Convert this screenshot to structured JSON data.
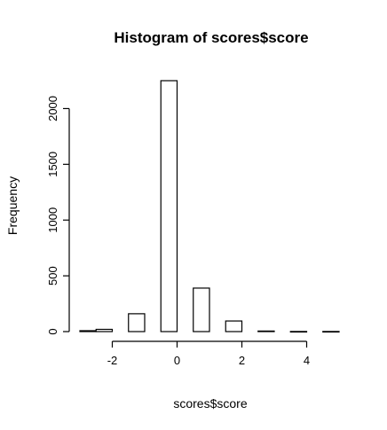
{
  "chart_data": {
    "type": "bar",
    "title": "Histogram of scores$score",
    "xlabel": "scores$score",
    "ylabel": "Frequency",
    "xlim": [
      -3,
      5
    ],
    "ylim": [
      0,
      2250
    ],
    "bins": [
      {
        "x0": -3.0,
        "x1": -2.5,
        "count": 8
      },
      {
        "x0": -2.5,
        "x1": -2.0,
        "count": 20
      },
      {
        "x0": -1.5,
        "x1": -1.0,
        "count": 160
      },
      {
        "x0": -0.5,
        "x1": 0.0,
        "count": 2250
      },
      {
        "x0": 0.5,
        "x1": 1.0,
        "count": 390
      },
      {
        "x0": 1.5,
        "x1": 2.0,
        "count": 95
      },
      {
        "x0": 2.5,
        "x1": 3.0,
        "count": 5
      },
      {
        "x0": 3.5,
        "x1": 4.0,
        "count": 1
      },
      {
        "x0": 4.5,
        "x1": 5.0,
        "count": 1
      }
    ],
    "xticks": [
      -2,
      0,
      2,
      4
    ],
    "xtick_labels": [
      "-2",
      "0",
      "2",
      "4"
    ],
    "yticks": [
      0,
      500,
      1000,
      1500,
      2000
    ],
    "ytick_labels": [
      "0",
      "500",
      "1000",
      "1500",
      "2000"
    ],
    "grid": false,
    "legend": "none",
    "colors": {
      "bar_fill": "#ffffff",
      "bar_stroke": "#000000",
      "text": "#000000",
      "background": "#ffffff"
    }
  }
}
